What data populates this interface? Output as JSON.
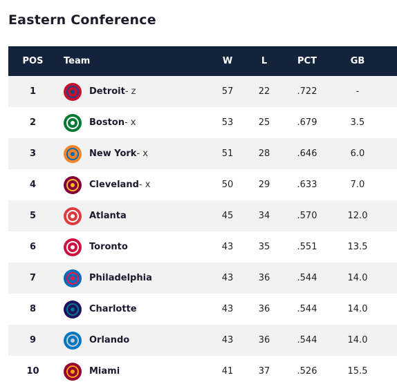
{
  "title": "Eastern Conference",
  "columns": {
    "pos": "POS",
    "team": "Team",
    "w": "W",
    "l": "L",
    "pct": "PCT",
    "gb": "GB"
  },
  "rows": [
    {
      "pos": "1",
      "team": "Detroit",
      "mark": "- z",
      "w": "57",
      "l": "22",
      "pct": ".722",
      "gb": "-",
      "icon": "pistons-logo-icon",
      "color": "#c8102e",
      "color2": "#1d428a"
    },
    {
      "pos": "2",
      "team": "Boston",
      "mark": "- x",
      "w": "53",
      "l": "25",
      "pct": ".679",
      "gb": "3.5",
      "icon": "celtics-logo-icon",
      "color": "#007a33",
      "color2": "#ffffff"
    },
    {
      "pos": "3",
      "team": "New York",
      "mark": "- x",
      "w": "51",
      "l": "28",
      "pct": ".646",
      "gb": "6.0",
      "icon": "knicks-logo-icon",
      "color": "#f58426",
      "color2": "#006bb6"
    },
    {
      "pos": "4",
      "team": "Cleveland",
      "mark": "- x",
      "w": "50",
      "l": "29",
      "pct": ".633",
      "gb": "7.0",
      "icon": "cavaliers-logo-icon",
      "color": "#860038",
      "color2": "#fdbb30"
    },
    {
      "pos": "5",
      "team": "Atlanta",
      "mark": "",
      "w": "45",
      "l": "34",
      "pct": ".570",
      "gb": "12.0",
      "icon": "hawks-logo-icon",
      "color": "#e03a3e",
      "color2": "#ffffff"
    },
    {
      "pos": "6",
      "team": "Toronto",
      "mark": "",
      "w": "43",
      "l": "35",
      "pct": ".551",
      "gb": "13.5",
      "icon": "raptors-logo-icon",
      "color": "#ce1141",
      "color2": "#ffffff"
    },
    {
      "pos": "7",
      "team": "Philadelphia",
      "mark": "",
      "w": "43",
      "l": "36",
      "pct": ".544",
      "gb": "14.0",
      "icon": "76ers-logo-icon",
      "color": "#006bb6",
      "color2": "#ed174c"
    },
    {
      "pos": "8",
      "team": "Charlotte",
      "mark": "",
      "w": "43",
      "l": "36",
      "pct": ".544",
      "gb": "14.0",
      "icon": "hornets-logo-icon",
      "color": "#1d1160",
      "color2": "#00788c"
    },
    {
      "pos": "9",
      "team": "Orlando",
      "mark": "",
      "w": "43",
      "l": "36",
      "pct": ".544",
      "gb": "14.0",
      "icon": "magic-logo-icon",
      "color": "#0077c0",
      "color2": "#c4ced4"
    },
    {
      "pos": "10",
      "team": "Miami",
      "mark": "",
      "w": "41",
      "l": "37",
      "pct": ".526",
      "gb": "15.5",
      "icon": "heat-logo-icon",
      "color": "#98002e",
      "color2": "#f9a01b"
    }
  ],
  "colors": {
    "header_bg": "#14233c",
    "row_alt_bg": "#f2f2f2"
  }
}
